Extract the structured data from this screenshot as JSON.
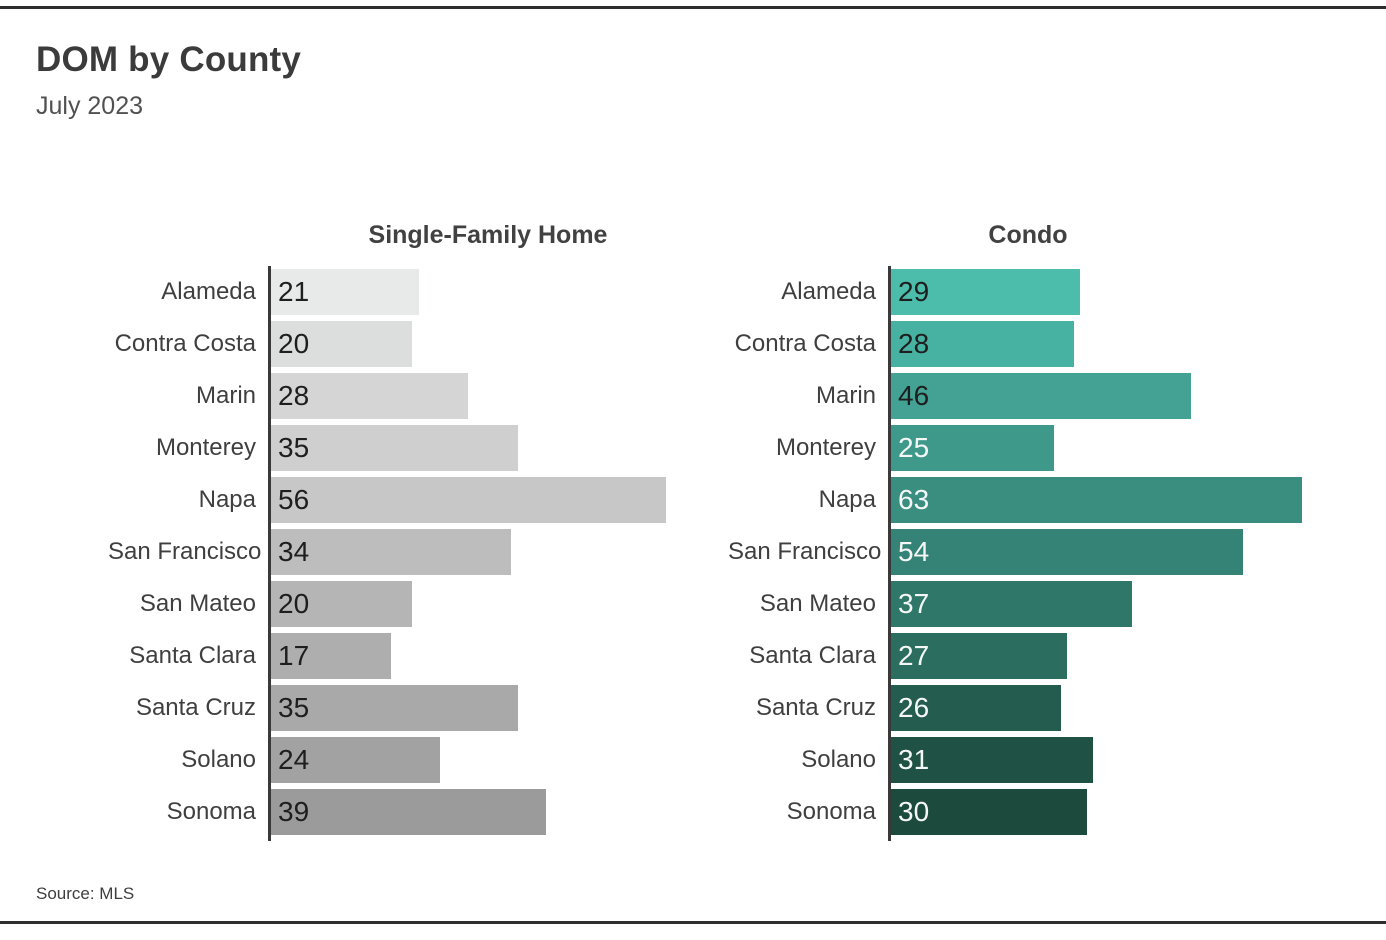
{
  "header": {
    "title": "DOM by County",
    "subtitle": "July 2023"
  },
  "footer": {
    "source": "Source: MLS"
  },
  "colors": {
    "rule": "#2e2e2e",
    "axis": "#393939",
    "title_text": "#3b3b3b",
    "subtitle_text": "#515151",
    "category_text": "#3f3f3f",
    "value_text_dark": "#1e1e1e",
    "value_text_light": "#f4f7f6"
  },
  "chart_data": [
    {
      "type": "bar",
      "orientation": "horizontal",
      "title": "Single-Family Home",
      "categories": [
        "Alameda",
        "Contra Costa",
        "Marin",
        "Monterey",
        "Napa",
        "San Francisco",
        "San Mateo",
        "Santa Clara",
        "Santa Cruz",
        "Solano",
        "Sonoma"
      ],
      "values": [
        21,
        20,
        28,
        35,
        56,
        34,
        20,
        17,
        35,
        24,
        39
      ],
      "xlabel": "",
      "ylabel": "",
      "xlim": [
        0,
        62
      ],
      "grid": false,
      "legend": false,
      "data_labels": "inside-left",
      "bar_colors": [
        "#e8eaea",
        "#dcdddd",
        "#d5d5d5",
        "#cfcfcf",
        "#c7c7c7",
        "#bdbdbd",
        "#b5b5b5",
        "#aeaeae",
        "#a9a9a9",
        "#a2a2a2",
        "#9b9b9b"
      ],
      "value_label_colors": [
        "#1e1e1e",
        "#1e1e1e",
        "#1e1e1e",
        "#1e1e1e",
        "#1e1e1e",
        "#1e1e1e",
        "#1e1e1e",
        "#1e1e1e",
        "#1e1e1e",
        "#1e1e1e",
        "#1e1e1e"
      ]
    },
    {
      "type": "bar",
      "orientation": "horizontal",
      "title": "Condo",
      "categories": [
        "Alameda",
        "Contra Costa",
        "Marin",
        "Monterey",
        "Napa",
        "San Francisco",
        "San Mateo",
        "Santa Clara",
        "Santa Cruz",
        "Solano",
        "Sonoma"
      ],
      "values": [
        29,
        28,
        46,
        25,
        63,
        54,
        37,
        27,
        26,
        31,
        30
      ],
      "xlabel": "",
      "ylabel": "",
      "xlim": [
        0,
        67
      ],
      "grid": false,
      "legend": false,
      "data_labels": "inside-left",
      "bar_colors": [
        "#4cbcab",
        "#47b2a2",
        "#43a294",
        "#3f998b",
        "#3a8e80",
        "#358376",
        "#2f7769",
        "#2b6d5f",
        "#255c50",
        "#1f5245",
        "#1c4a3d"
      ],
      "value_label_colors": [
        "#1e1e1e",
        "#1e1e1e",
        "#1e1e1e",
        "#f4f7f6",
        "#f4f7f6",
        "#f4f7f6",
        "#f4f7f6",
        "#f4f7f6",
        "#f4f7f6",
        "#f4f7f6",
        "#f4f7f6"
      ]
    }
  ]
}
